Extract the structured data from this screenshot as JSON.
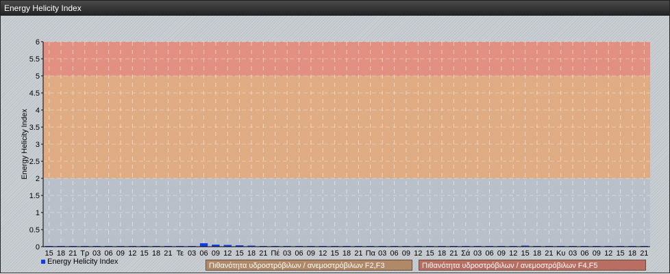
{
  "window": {
    "title": "Energy Helicity Index"
  },
  "chart_data": {
    "type": "bar",
    "title": "",
    "ylabel": "Energy Helicity Index",
    "xlabel": "",
    "ylim": [
      0,
      6
    ],
    "yticks": [
      "0",
      "0.5",
      "1",
      "1.5",
      "2",
      "2.5",
      "3",
      "3.5",
      "4",
      "4.5",
      "5",
      "5.5",
      "6"
    ],
    "grid": true,
    "categories": [
      "15",
      "18",
      "21",
      "Τρ",
      "03",
      "06",
      "09",
      "12",
      "15",
      "18",
      "21",
      "Τε",
      "03",
      "06",
      "09",
      "12",
      "15",
      "18",
      "21",
      "Πέ",
      "03",
      "06",
      "09",
      "12",
      "15",
      "18",
      "21",
      "Πα",
      "03",
      "06",
      "09",
      "12",
      "15",
      "18",
      "21",
      "Σά",
      "03",
      "06",
      "09",
      "12",
      "15",
      "18",
      "21",
      "Κυ",
      "03",
      "06",
      "09",
      "12",
      "15",
      "18",
      "21"
    ],
    "series": [
      {
        "name": "Energy Helicity Index",
        "color": "#1040e0",
        "values": [
          0.02,
          0.02,
          0.02,
          0.02,
          0.02,
          0.02,
          0.02,
          0.02,
          0.02,
          0.02,
          0.02,
          0.02,
          0.02,
          0.1,
          0.06,
          0.05,
          0.04,
          0.03,
          0.02,
          0.02,
          0.02,
          0.02,
          0.02,
          0.02,
          0.02,
          0.02,
          0.02,
          0.02,
          0.02,
          0.02,
          0.02,
          0.02,
          0.02,
          0.02,
          0.02,
          0.02,
          0.02,
          0.02,
          0.02,
          0.02,
          0.03,
          0.02,
          0.02,
          0.02,
          0.02,
          0.02,
          0.02,
          0.02,
          0.02,
          0.02,
          0.02
        ]
      }
    ],
    "bands": [
      {
        "from": 0,
        "to": 2,
        "color": "#b7bfc8"
      },
      {
        "from": 2,
        "to": 5,
        "color": "#e2a97a",
        "label": "Πιθανότητα υδροστρόβιλων / ανεμοστρόβιλων F2,F3",
        "legend_color": "#b08a68"
      },
      {
        "from": 5,
        "to": 6,
        "color": "#e38a78",
        "label": "Πιθανότητα υδροστρόβιλων / ανεμοστρόβιλων F4,F5",
        "legend_color": "#b86e62"
      }
    ],
    "legend": "bottom-left"
  }
}
